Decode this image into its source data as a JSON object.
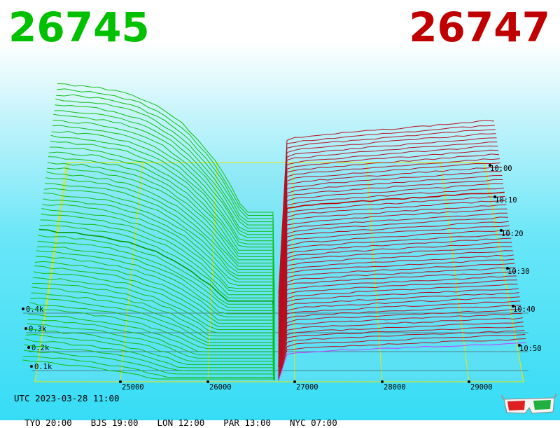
{
  "header": {
    "bid_price": "26745",
    "ask_price": "26747",
    "bid_color": "#00c000",
    "ask_color": "#c00000"
  },
  "footer": {
    "utc": "UTC 2023-03-28 11:00",
    "cities": [
      "TYO 20:00",
      "BJS 19:00",
      "LON 12:00",
      "PAR 13:00",
      "NYC 07:00"
    ]
  },
  "icons": {
    "glasses": "3d-glasses-icon"
  },
  "chart_data": {
    "type": "area",
    "style": "3d order-book depth waterfall",
    "x_ticks": [
      "25000",
      "26000",
      "27000",
      "28000",
      "29000"
    ],
    "depth_ticks": [
      "0.1k",
      "0.2k",
      "0.3k",
      "0.4k"
    ],
    "time_ticks": [
      "10:00",
      "10:10",
      "10:20",
      "10:30",
      "10:40",
      "10:50"
    ],
    "mid_price": 26746,
    "bid_color": "#00c000",
    "ask_color": "#c00000",
    "latest_ask_color": "#c040ff",
    "grid": true
  }
}
